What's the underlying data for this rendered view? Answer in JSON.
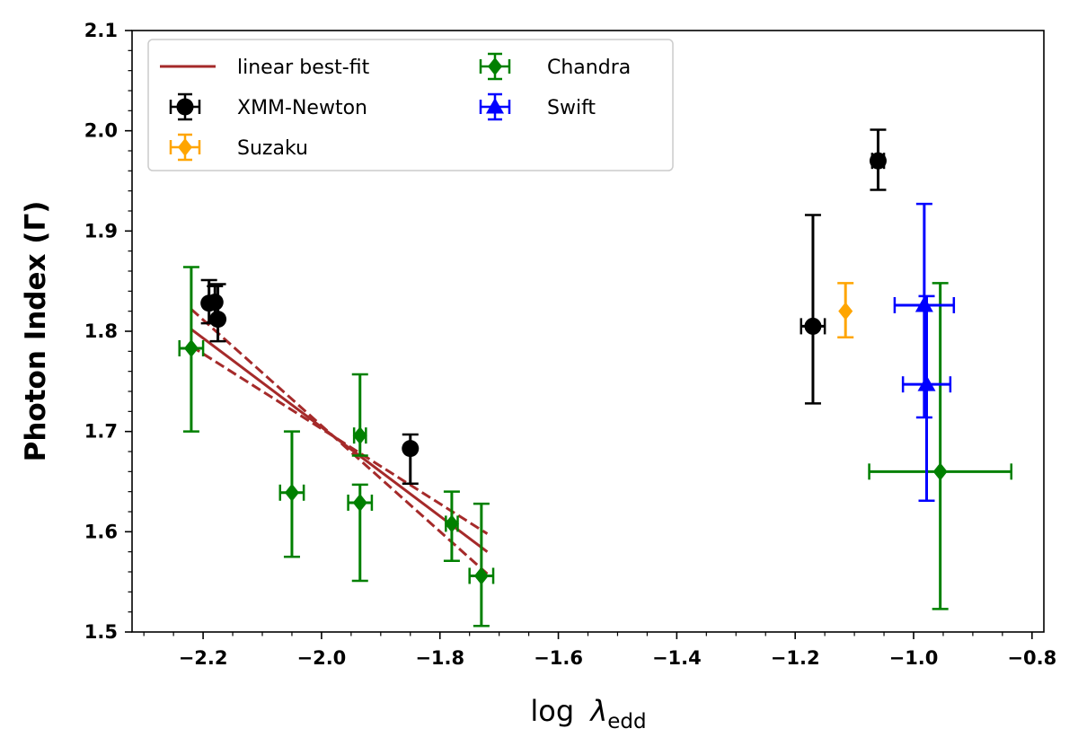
{
  "chart_data": {
    "type": "scatter",
    "xlabel": {
      "base": "log",
      "symbol": "λ",
      "subscript": "edd"
    },
    "ylabel": "Photon Index (Γ)",
    "xlim": [
      -2.32,
      -0.78
    ],
    "ylim": [
      1.5,
      2.1
    ],
    "xticks": [
      -2.2,
      -2.0,
      -1.8,
      -1.6,
      -1.4,
      -1.2,
      -1.0,
      -0.8
    ],
    "xtick_labels": [
      "−2.2",
      "−2.0",
      "−1.8",
      "−1.6",
      "−1.4",
      "−1.2",
      "−1.0",
      "−0.8"
    ],
    "yticks": [
      1.5,
      1.6,
      1.7,
      1.8,
      1.9,
      2.0,
      2.1
    ],
    "ytick_labels": [
      "1.5",
      "1.6",
      "1.7",
      "1.8",
      "1.9",
      "2.0",
      "2.1"
    ],
    "grid": false,
    "legend": {
      "position": "top-left",
      "columns": 2
    },
    "fit": {
      "name": "linear best-fit",
      "color": "#a52a2a",
      "x_range": [
        -2.22,
        -1.72
      ],
      "best": [
        1.802,
        1.58
      ],
      "upper": [
        1.822,
        1.598
      ],
      "lower": [
        1.785,
        1.558
      ]
    },
    "series": [
      {
        "name": "XMM-Newton",
        "marker": "circle",
        "color": "#000000",
        "points": [
          {
            "x": -2.19,
            "y": 1.828,
            "yerr_lo": 0.02,
            "yerr_hi": 0.023,
            "xerr": 0.0
          },
          {
            "x": -2.18,
            "y": 1.829,
            "yerr_lo": 0.02,
            "yerr_hi": 0.016,
            "xerr": 0.0
          },
          {
            "x": -2.175,
            "y": 1.812,
            "yerr_lo": 0.022,
            "yerr_hi": 0.035,
            "xerr": 0.0
          },
          {
            "x": -1.85,
            "y": 1.683,
            "yerr_lo": 0.035,
            "yerr_hi": 0.014,
            "xerr": 0.0
          },
          {
            "x": -1.17,
            "y": 1.805,
            "yerr_lo": 0.077,
            "yerr_hi": 0.111,
            "xerr": 0.02
          },
          {
            "x": -1.06,
            "y": 1.97,
            "yerr_lo": 0.029,
            "yerr_hi": 0.031,
            "xerr": 0.01
          }
        ]
      },
      {
        "name": "Suzaku",
        "marker": "diamond",
        "color": "#ffa500",
        "points": [
          {
            "x": -1.115,
            "y": 1.82,
            "yerr_lo": 0.026,
            "yerr_hi": 0.028,
            "xerr": 0.0
          }
        ]
      },
      {
        "name": "Chandra",
        "marker": "diamond",
        "color": "#008000",
        "points": [
          {
            "x": -2.22,
            "y": 1.783,
            "yerr_lo": 0.083,
            "yerr_hi": 0.081,
            "xerr": 0.02
          },
          {
            "x": -2.05,
            "y": 1.639,
            "yerr_lo": 0.064,
            "yerr_hi": 0.061,
            "xerr": 0.02
          },
          {
            "x": -1.935,
            "y": 1.696,
            "yerr_lo": 0.02,
            "yerr_hi": 0.061,
            "xerr": 0.01
          },
          {
            "x": -1.935,
            "y": 1.629,
            "yerr_lo": 0.078,
            "yerr_hi": 0.018,
            "xerr": 0.02
          },
          {
            "x": -1.78,
            "y": 1.608,
            "yerr_lo": 0.037,
            "yerr_hi": 0.032,
            "xerr": 0.01
          },
          {
            "x": -1.73,
            "y": 1.556,
            "yerr_lo": 0.05,
            "yerr_hi": 0.072,
            "xerr": 0.02
          },
          {
            "x": -0.955,
            "y": 1.66,
            "yerr_lo": 0.137,
            "yerr_hi": 0.188,
            "xerr": 0.12
          }
        ]
      },
      {
        "name": "Swift",
        "marker": "triangle",
        "color": "#0000ff",
        "points": [
          {
            "x": -0.982,
            "y": 1.826,
            "yerr_lo": 0.112,
            "yerr_hi": 0.101,
            "xerr": 0.05
          },
          {
            "x": -0.978,
            "y": 1.747,
            "yerr_lo": 0.116,
            "yerr_hi": 0.088,
            "xerr": 0.04
          }
        ]
      }
    ]
  }
}
